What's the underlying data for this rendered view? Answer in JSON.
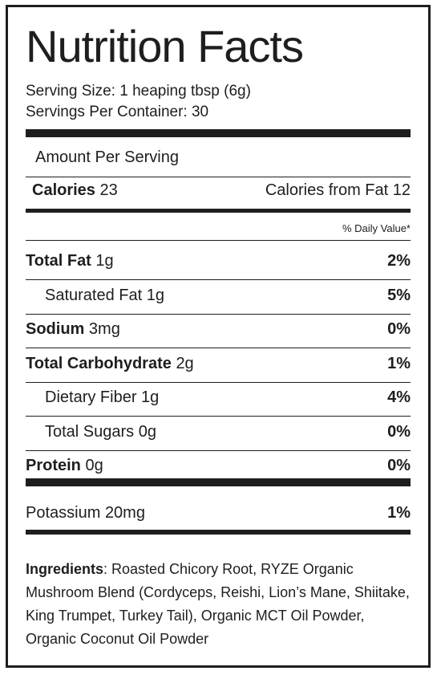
{
  "title": "Nutrition Facts",
  "serving_size": "Serving Size: 1 heaping tbsp (6g)",
  "servings_per_container": "Servings Per Container: 30",
  "amount_per_serving": "Amount Per Serving",
  "calories": {
    "label": "Calories",
    "value": "23"
  },
  "calories_from_fat": "Calories from Fat 12",
  "daily_value_header": "% Daily Value*",
  "nutrients": [
    {
      "name": "Total Fat",
      "amount": "1g",
      "dv": "2%"
    },
    {
      "name": "Saturated Fat",
      "amount": "1g",
      "dv": "5%"
    },
    {
      "name": "Sodium",
      "amount": "3mg",
      "dv": "0%"
    },
    {
      "name": "Total Carbohydrate",
      "amount": "2g",
      "dv": "1%"
    },
    {
      "name": "Dietary Fiber",
      "amount": "1g",
      "dv": "4%"
    },
    {
      "name": "Total Sugars",
      "amount": "0g",
      "dv": "0%"
    },
    {
      "name": "Protein",
      "amount": "0g",
      "dv": "0%"
    }
  ],
  "potassium": {
    "name": "Potassium",
    "amount": "20mg",
    "dv": "1%"
  },
  "ingredients": {
    "label": "Ingredients",
    "text": ": Roasted Chicory Root, RYZE Organic Mushroom Blend (Cordyceps, Reishi, Lion’s Mane, Shiitake, King Trumpet, Turkey Tail), Organic MCT Oil Powder, Organic Coconut Oil Powder"
  }
}
